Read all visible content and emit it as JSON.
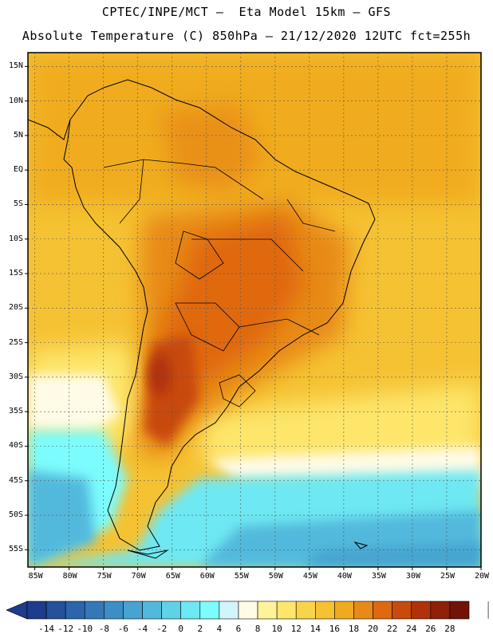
{
  "header": {
    "line1": "CPTEC/INPE/MCT –  Eta Model 15km – GFS",
    "line2": "Absolute Temperature (C) 850hPa – 21/12/2020 12UTC fct=255h"
  },
  "map": {
    "lat_labels": [
      "15N",
      "10N",
      "5N",
      "EQ",
      "5S",
      "10S",
      "15S",
      "20S",
      "25S",
      "30S",
      "35S",
      "40S",
      "45S",
      "50S",
      "55S"
    ],
    "lat_values": [
      15,
      10,
      5,
      0,
      -5,
      -10,
      -15,
      -20,
      -25,
      -30,
      -35,
      -40,
      -45,
      -50,
      -55
    ],
    "lon_labels": [
      "85W",
      "80W",
      "75W",
      "70W",
      "65W",
      "60W",
      "55W",
      "50W",
      "45W",
      "40W",
      "35W",
      "30W",
      "25W",
      "20W"
    ],
    "lon_values": [
      -85,
      -80,
      -75,
      -70,
      -65,
      -60,
      -55,
      -50,
      -45,
      -40,
      -35,
      -30,
      -25,
      -20
    ],
    "lat_range": [
      -57.5,
      17
    ],
    "lon_range": [
      -86,
      -20
    ]
  },
  "colorbar": {
    "labels": [
      "-14",
      "-12",
      "-10",
      "-8",
      "-6",
      "-4",
      "-2",
      "0",
      "2",
      "4",
      "6",
      "8",
      "10",
      "12",
      "14",
      "16",
      "18",
      "20",
      "22",
      "24",
      "26",
      "28"
    ],
    "colors": [
      "#1e3c8c",
      "#24519c",
      "#2c65ac",
      "#3478b8",
      "#3d8ec4",
      "#47a4d0",
      "#52b9dc",
      "#5fd2e8",
      "#6ee8f2",
      "#7cfcfc",
      "#d4f4fb",
      "#fffbe6",
      "#fff39a",
      "#fde66a",
      "#f8d44a",
      "#f5c233",
      "#f0aa1e",
      "#e88a18",
      "#e06810",
      "#c84a0c",
      "#b0320a",
      "#902008",
      "#701408"
    ]
  }
}
